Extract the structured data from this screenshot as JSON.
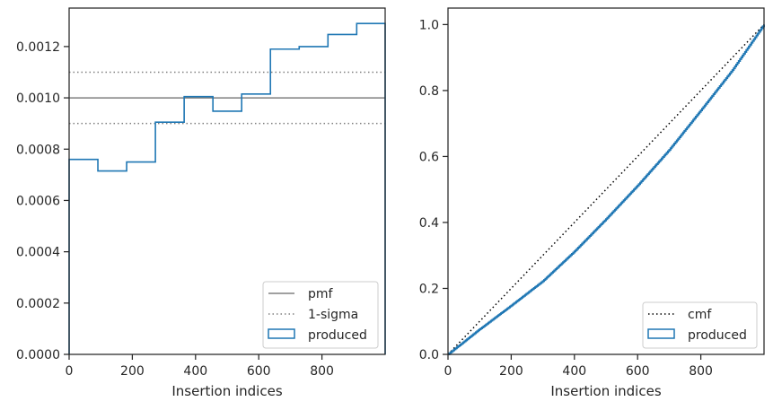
{
  "chart_data": [
    {
      "type": "line",
      "plot_kind": "step-histogram",
      "xlabel": "Insertion indices",
      "ylabel": "",
      "xlim": [
        0,
        1000
      ],
      "ylim": [
        0,
        0.00135
      ],
      "xticks": [
        0,
        200,
        400,
        600,
        800
      ],
      "xtick_labels": [
        "0",
        "200",
        "400",
        "600",
        "800"
      ],
      "yticks": [
        0,
        0.0002,
        0.0004,
        0.0006,
        0.0008,
        0.001,
        0.0012
      ],
      "ytick_labels": [
        "0.0000",
        "0.0002",
        "0.0004",
        "0.0006",
        "0.0008",
        "0.0010",
        "0.0012"
      ],
      "grid": false,
      "legend_position": "lower-right",
      "legend": [
        {
          "label": "pmf",
          "style": "solid",
          "color": "#808080"
        },
        {
          "label": "1-sigma",
          "style": "dotted",
          "color": "#808080"
        },
        {
          "label": "produced",
          "style": "patch",
          "color": "#1f77b4"
        }
      ],
      "reference_lines": [
        {
          "name": "pmf",
          "y": 0.001
        },
        {
          "name": "1-sigma",
          "y": 0.0011
        },
        {
          "name": "1-sigma",
          "y": 0.0009
        }
      ],
      "series": [
        {
          "name": "produced",
          "color": "#1f77b4",
          "bin_edges": [
            0,
            91,
            182,
            273,
            364,
            455,
            546,
            637,
            728,
            819,
            910,
            1000
          ],
          "values": [
            0.00076,
            0.000715,
            0.00075,
            0.000905,
            0.001005,
            0.000948,
            0.001015,
            0.00119,
            0.0012,
            0.001247,
            0.00129
          ]
        }
      ]
    },
    {
      "type": "line",
      "xlabel": "Insertion indices",
      "ylabel": "",
      "xlim": [
        0,
        1000
      ],
      "ylim": [
        0,
        1.05
      ],
      "xticks": [
        0,
        200,
        400,
        600,
        800
      ],
      "xtick_labels": [
        "0",
        "200",
        "400",
        "600",
        "800"
      ],
      "yticks": [
        0,
        0.2,
        0.4,
        0.6,
        0.8,
        1.0
      ],
      "ytick_labels": [
        "0.0",
        "0.2",
        "0.4",
        "0.6",
        "0.8",
        "1.0"
      ],
      "grid": false,
      "legend_position": "lower-right",
      "legend": [
        {
          "label": "cmf",
          "style": "dotted",
          "color": "#000000"
        },
        {
          "label": "produced",
          "style": "patch",
          "color": "#1f77b4"
        }
      ],
      "series": [
        {
          "name": "cmf",
          "color": "#000000",
          "x": [
            0,
            1000
          ],
          "y": [
            0,
            1.0
          ]
        },
        {
          "name": "produced",
          "color": "#1f77b4",
          "x": [
            0,
            100,
            200,
            300,
            400,
            500,
            600,
            700,
            800,
            900,
            1000
          ],
          "y": [
            0,
            0.076,
            0.148,
            0.222,
            0.312,
            0.41,
            0.512,
            0.62,
            0.74,
            0.862,
            1.0
          ]
        }
      ]
    }
  ]
}
